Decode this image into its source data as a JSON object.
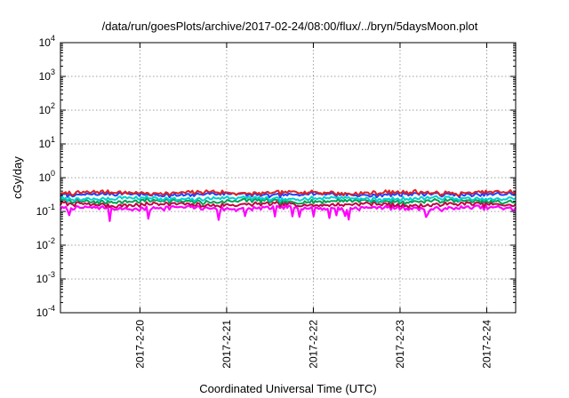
{
  "chart_data": {
    "type": "line",
    "title": "/data/run/goesPlots/archive/2017-02-24/08:00/flux/../bryn/5daysMoon.plot",
    "xlabel": "Coordinated Universal Time (UTC)",
    "ylabel": "cGy/day",
    "yscale": "log",
    "ylim": [
      0.0001,
      10000
    ],
    "y_ticks": [
      {
        "value": 0.0001,
        "base": "10",
        "exp": "-4"
      },
      {
        "value": 0.001,
        "base": "10",
        "exp": "-3"
      },
      {
        "value": 0.01,
        "base": "10",
        "exp": "-2"
      },
      {
        "value": 0.1,
        "base": "10",
        "exp": "-1"
      },
      {
        "value": 1,
        "base": "10",
        "exp": "0"
      },
      {
        "value": 10,
        "base": "10",
        "exp": "1"
      },
      {
        "value": 100,
        "base": "10",
        "exp": "2"
      },
      {
        "value": 1000,
        "base": "10",
        "exp": "3"
      },
      {
        "value": 10000,
        "base": "10",
        "exp": "4"
      }
    ],
    "xlim": [
      "2017-02-19T02:00",
      "2017-02-24T08:00"
    ],
    "x_ticks": [
      {
        "value": "2017-02-20T00:00",
        "label": "2017-2-20"
      },
      {
        "value": "2017-02-21T00:00",
        "label": "2017-2-21"
      },
      {
        "value": "2017-02-22T00:00",
        "label": "2017-2-22"
      },
      {
        "value": "2017-02-23T00:00",
        "label": "2017-2-23"
      },
      {
        "value": "2017-02-24T00:00",
        "label": "2017-2-24"
      }
    ],
    "grid": true,
    "series": [
      {
        "color": "#ff00ff",
        "base": 0.125,
        "spiky": true
      },
      {
        "color": "#c00040",
        "base": 0.16,
        "spiky": false
      },
      {
        "color": "#00a050",
        "base": 0.2,
        "spiky": false
      },
      {
        "color": "#00d0d0",
        "base": 0.24,
        "spiky": false
      },
      {
        "color": "#2040ff",
        "base": 0.32,
        "spiky": false
      },
      {
        "color": "#e02020",
        "base": 0.36,
        "spiky": false
      }
    ]
  }
}
